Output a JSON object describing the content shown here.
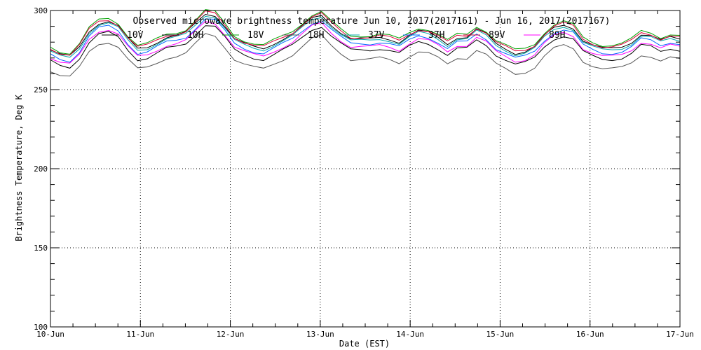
{
  "chart_data": {
    "type": "line",
    "title": "Observed microwave brightness temperature Jun 10, 2017(2017161) - Jun 16, 2017(2017167)",
    "xlabel": "Date (EST)",
    "ylabel": "Brightness Temperature, Deg K",
    "xlim": [
      "10-Jun",
      "17-Jun"
    ],
    "ylim": [
      100,
      300
    ],
    "yticks": [
      100,
      150,
      200,
      250,
      300
    ],
    "xticks": [
      "10-Jun",
      "11-Jun",
      "12-Jun",
      "13-Jun",
      "14-Jun",
      "15-Jun",
      "16-Jun",
      "17-Jun"
    ],
    "grid": true,
    "legend_position": "top",
    "x_step": "3 h",
    "series": [
      {
        "name": "10V",
        "color": "#000000",
        "values": [
          275,
          272,
          271,
          277,
          287,
          292,
          293,
          290,
          282,
          276,
          277,
          280,
          283,
          284,
          286,
          292,
          298,
          297,
          290,
          282,
          279,
          277,
          276,
          279,
          282,
          285,
          290,
          295,
          297,
          291,
          286,
          282,
          282,
          282,
          283,
          282,
          280,
          284,
          287,
          286,
          283,
          279,
          283,
          283,
          288,
          285,
          279,
          276,
          273,
          274,
          277,
          284,
          289,
          291,
          289,
          281,
          278,
          276,
          276,
          277,
          280,
          285,
          284,
          281,
          283,
          282
        ]
      },
      {
        "name": "10H",
        "color": "#000000",
        "values": [
          268,
          265,
          264,
          270,
          280,
          285,
          286,
          283,
          275,
          269,
          270,
          273,
          276,
          277,
          279,
          285,
          291,
          290,
          283,
          275,
          272,
          270,
          269,
          272,
          275,
          278,
          283,
          288,
          290,
          284,
          279,
          275,
          275,
          275,
          276,
          275,
          273,
          277,
          280,
          279,
          276,
          272,
          276,
          276,
          281,
          278,
          272,
          269,
          266,
          267,
          270,
          277,
          282,
          284,
          282,
          274,
          271,
          269,
          269,
          270,
          273,
          278,
          277,
          274,
          276,
          275
        ]
      },
      {
        "name": "18V",
        "color": "#00a000",
        "values": [
          277,
          274,
          273,
          279,
          289,
          294,
          295,
          292,
          284,
          278,
          279,
          282,
          285,
          286,
          288,
          294,
          300,
          299,
          292,
          284,
          281,
          279,
          278,
          281,
          284,
          287,
          292,
          297,
          299,
          293,
          288,
          284,
          284,
          284,
          285,
          284,
          282,
          286,
          289,
          288,
          285,
          281,
          285,
          285,
          290,
          287,
          281,
          278,
          275,
          276,
          279,
          286,
          291,
          293,
          291,
          283,
          280,
          278,
          278,
          279,
          282,
          287,
          286,
          283,
          285,
          284
        ]
      },
      {
        "name": "18H",
        "color": "#555555",
        "values": [
          262,
          259,
          258,
          264,
          274,
          279,
          280,
          277,
          269,
          263,
          264,
          267,
          270,
          271,
          273,
          279,
          285,
          284,
          277,
          269,
          266,
          264,
          263,
          266,
          269,
          272,
          277,
          282,
          284,
          278,
          273,
          269,
          269,
          269,
          270,
          269,
          267,
          271,
          274,
          273,
          270,
          266,
          270,
          270,
          275,
          272,
          266,
          263,
          260,
          261,
          264,
          271,
          276,
          278,
          276,
          268,
          265,
          263,
          263,
          264,
          267,
          272,
          271,
          268,
          270,
          269
        ]
      },
      {
        "name": "37V",
        "color": "#00aaaa",
        "values": [
          274,
          271,
          270,
          276,
          286,
          291,
          292,
          289,
          281,
          275,
          276,
          279,
          282,
          283,
          285,
          291,
          297,
          296,
          289,
          281,
          278,
          276,
          275,
          278,
          281,
          284,
          289,
          294,
          296,
          290,
          285,
          281,
          281,
          281,
          282,
          281,
          279,
          283,
          286,
          285,
          282,
          278,
          282,
          282,
          287,
          284,
          278,
          275,
          272,
          273,
          276,
          283,
          288,
          290,
          288,
          280,
          277,
          275,
          275,
          276,
          279,
          284,
          283,
          280,
          282,
          281
        ]
      },
      {
        "name": "37H",
        "color": "#0066ff",
        "values": [
          272,
          269,
          268,
          274,
          284,
          289,
          290,
          287,
          279,
          273,
          274,
          277,
          280,
          281,
          283,
          289,
          295,
          294,
          287,
          279,
          276,
          274,
          273,
          276,
          279,
          282,
          287,
          292,
          294,
          288,
          283,
          279,
          279,
          279,
          280,
          279,
          277,
          281,
          284,
          283,
          280,
          276,
          280,
          280,
          285,
          282,
          276,
          273,
          270,
          271,
          274,
          281,
          286,
          288,
          286,
          278,
          275,
          273,
          273,
          274,
          277,
          282,
          281,
          278,
          280,
          279
        ]
      },
      {
        "name": "89V",
        "color": "#e0003c",
        "values": [
          276,
          273,
          272,
          278,
          288,
          293,
          294,
          291,
          283,
          277,
          278,
          281,
          284,
          285,
          287,
          293,
          299,
          298,
          291,
          283,
          280,
          278,
          277,
          280,
          283,
          286,
          291,
          296,
          298,
          292,
          287,
          283,
          283,
          283,
          284,
          283,
          281,
          285,
          288,
          287,
          284,
          280,
          284,
          284,
          289,
          286,
          280,
          277,
          274,
          275,
          278,
          285,
          290,
          292,
          290,
          282,
          279,
          277,
          277,
          278,
          281,
          286,
          285,
          282,
          284,
          283
        ]
      },
      {
        "name": "89H",
        "color": "#ff00ff",
        "values": [
          270,
          267,
          266,
          272,
          282,
          287,
          288,
          285,
          277,
          271,
          272,
          275,
          278,
          279,
          281,
          287,
          293,
          292,
          285,
          277,
          274,
          272,
          271,
          274,
          277,
          280,
          285,
          290,
          292,
          286,
          281,
          277,
          277,
          277,
          278,
          277,
          275,
          279,
          282,
          281,
          278,
          274,
          278,
          278,
          283,
          280,
          274,
          271,
          268,
          269,
          272,
          279,
          284,
          286,
          284,
          276,
          273,
          271,
          271,
          272,
          275,
          280,
          279,
          276,
          278,
          277
        ]
      }
    ]
  }
}
